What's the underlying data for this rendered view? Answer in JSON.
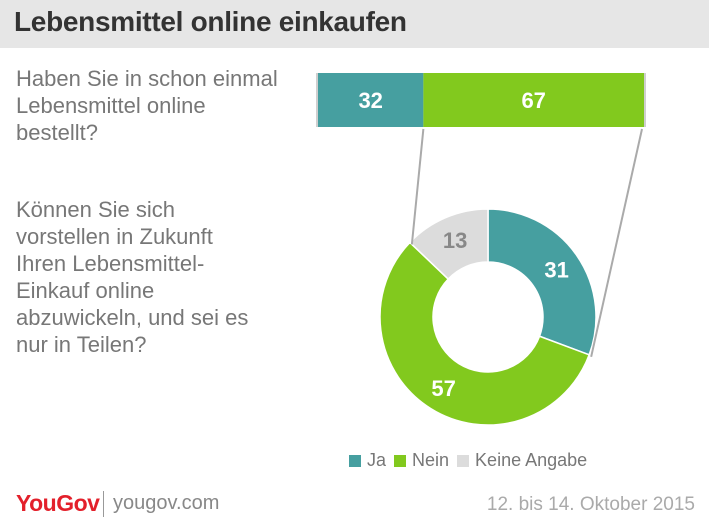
{
  "header": {
    "title": "Lebensmittel online einkaufen"
  },
  "questions": {
    "q1": "Haben Sie in schon einmal\nLebensmittel online\nbestellt?",
    "q2": "Können Sie sich\nvorstellen in Zukunft\nIhren Lebensmittel-\nEinkauf online\nabzuwickeln, und sei es\nnur in Teilen?"
  },
  "colors": {
    "ja": "#469fa0",
    "nein": "#82c91e",
    "keine_angabe": "#dcdcdc",
    "connector": "#aaaaaa"
  },
  "chart_data": [
    {
      "type": "bar",
      "orientation": "horizontal-stacked",
      "categories": [
        "Haben Sie in schon einmal Lebensmittel online bestellt?"
      ],
      "series": [
        {
          "name": "Ja",
          "values": [
            32
          ]
        },
        {
          "name": "Nein",
          "values": [
            67
          ]
        }
      ],
      "data_labels": [
        "32",
        "67"
      ]
    },
    {
      "type": "pie",
      "variant": "donut",
      "categories": [
        "Ja",
        "Nein",
        "Keine Angabe"
      ],
      "values": [
        31,
        57,
        13
      ],
      "data_labels": [
        "31",
        "57",
        "13"
      ]
    }
  ],
  "legend": {
    "items": [
      {
        "label": "Ja",
        "color": "#469fa0"
      },
      {
        "label": "Nein",
        "color": "#82c91e"
      },
      {
        "label": "Keine Angabe",
        "color": "#dcdcdc"
      }
    ],
    "placement": "bottom"
  },
  "footer": {
    "logo": "YouGov",
    "url": "yougov.com",
    "date": "12. bis 14. Oktober 2015"
  }
}
